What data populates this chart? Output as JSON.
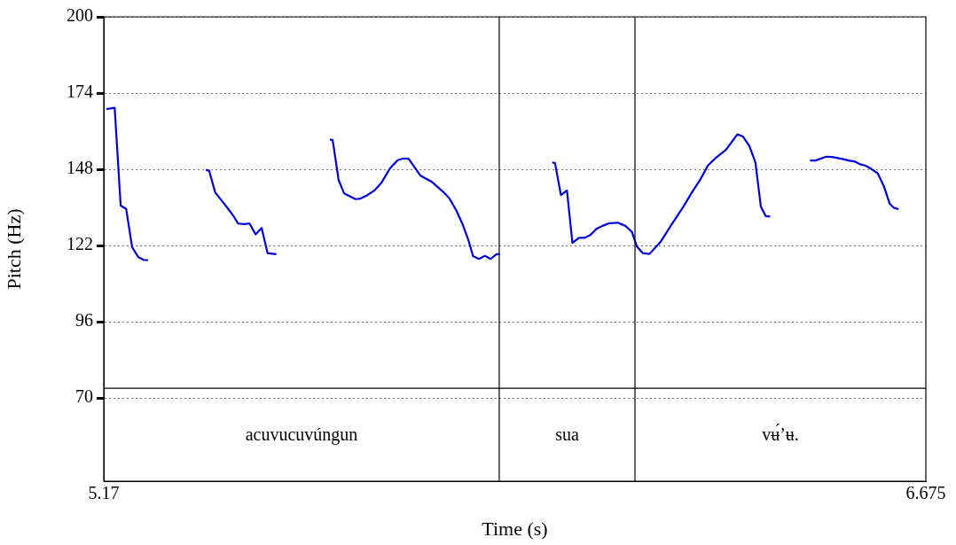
{
  "chart_data": {
    "type": "line",
    "xlabel": "Time (s)",
    "ylabel": "Pitch (Hz)",
    "xlim": [
      5.17,
      6.675
    ],
    "xticks": [
      5.17,
      6.675
    ],
    "ylim": [
      41.6,
      200
    ],
    "yticks": [
      70,
      96,
      122,
      148,
      174,
      200
    ],
    "grid": "y",
    "series": [
      {
        "color": "#0000dd",
        "x": [
          5.175,
          5.19,
          5.201,
          5.211,
          5.222,
          5.233,
          5.243,
          5.251
        ],
        "values": [
          168.5,
          169.0,
          135.6,
          134.5,
          121.4,
          118.1,
          117.1,
          117.0
        ]
      },
      {
        "color": "#0000dd",
        "x": [
          5.357,
          5.363,
          5.374,
          5.383,
          5.397,
          5.407,
          5.416,
          5.427,
          5.437,
          5.448,
          5.459,
          5.47,
          5.486
        ],
        "values": [
          147.8,
          147.5,
          140.1,
          138.0,
          134.7,
          132.2,
          129.5,
          129.3,
          129.5,
          125.8,
          128.0,
          119.4,
          119.0
        ]
      },
      {
        "color": "#0000dd",
        "x": [
          5.584,
          5.589,
          5.6,
          5.61,
          5.631,
          5.64,
          5.651,
          5.665,
          5.678,
          5.694,
          5.708,
          5.719,
          5.728,
          5.75,
          5.77,
          5.792,
          5.803,
          5.816,
          5.827,
          5.838,
          5.846,
          5.857,
          5.868,
          5.878,
          5.889,
          5.895
        ],
        "values": [
          158.1,
          158.0,
          144.3,
          139.8,
          137.8,
          138.0,
          139.0,
          140.7,
          143.3,
          148.3,
          151.1,
          151.7,
          151.6,
          145.8,
          143.8,
          140.2,
          138.0,
          133.7,
          129.2,
          123.6,
          118.4,
          117.4,
          118.5,
          117.4,
          119.0,
          119.1
        ]
      },
      {
        "color": "#0000dd",
        "x": [
          5.991,
          5.996,
          6.007,
          6.018,
          6.028,
          6.04,
          6.05,
          6.061,
          6.072,
          6.083,
          6.094,
          6.111,
          6.125,
          6.137,
          6.146,
          6.157,
          6.169,
          6.19,
          6.209,
          6.231,
          6.247,
          6.263,
          6.276,
          6.29,
          6.309,
          6.33,
          6.34,
          6.352,
          6.363,
          6.373,
          6.382,
          6.39
        ],
        "values": [
          150.3,
          150.2,
          139.2,
          140.8,
          122.9,
          124.6,
          124.6,
          125.6,
          127.7,
          128.7,
          129.5,
          129.8,
          128.7,
          126.6,
          121.6,
          119.4,
          119.1,
          123.4,
          129.0,
          135.2,
          140.2,
          144.8,
          149.3,
          151.8,
          154.6,
          159.9,
          159.2,
          155.9,
          150.3,
          135.2,
          132.0,
          131.9
        ]
      },
      {
        "color": "#0000dd",
        "x": [
          6.463,
          6.473,
          6.493,
          6.503,
          6.522,
          6.536,
          6.544,
          6.555,
          6.565,
          6.576,
          6.587,
          6.598,
          6.609,
          6.617,
          6.625
        ],
        "values": [
          151.0,
          151.0,
          152.3,
          152.2,
          151.5,
          150.9,
          150.7,
          149.7,
          149.2,
          148.0,
          146.6,
          142.3,
          136.2,
          134.8,
          134.4
        ]
      }
    ],
    "ref_lines": [
      {
        "axis": "x",
        "value": 5.894
      },
      {
        "axis": "x",
        "value": 6.1425
      },
      {
        "axis": "y",
        "value": 73.3
      }
    ],
    "annotations": [
      "acuvucuvúngun",
      "sua",
      "vʉ́’ʉ."
    ]
  }
}
